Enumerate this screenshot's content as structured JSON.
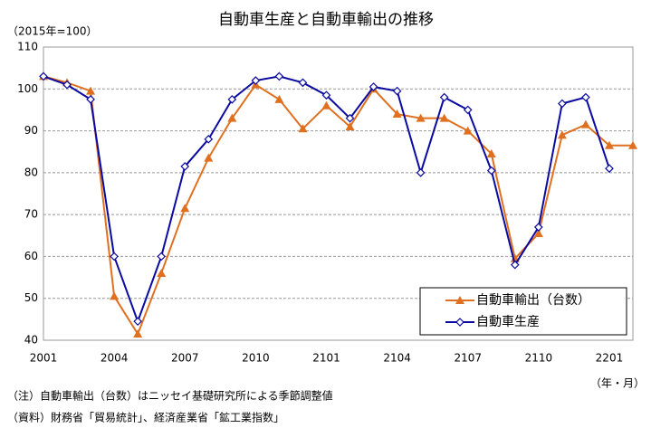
{
  "chart_data": {
    "type": "line",
    "title": "自動車生産と自動車輸出の推移",
    "y_label": "（2015年=100）",
    "x_label": "（年・月）",
    "notes": [
      "（注）自動車輸出（台数）はニッセイ基礎研究所による季節調整値",
      "（資料）財務省「貿易統計」、経済産業省「鉱工業指数」"
    ],
    "categories": [
      "2001",
      null,
      null,
      "2004",
      null,
      null,
      "2007",
      null,
      null,
      "2010",
      null,
      null,
      "2101",
      null,
      null,
      "2104",
      null,
      null,
      "2107",
      null,
      null,
      "2110",
      null,
      null,
      "2201",
      null
    ],
    "series": [
      {
        "name": "自動車輸出（台数）",
        "color": "#e07020",
        "marker": "triangle",
        "values": [
          103,
          101.5,
          99.5,
          50.5,
          41.5,
          56,
          71.5,
          83.5,
          93,
          101,
          97.5,
          90.5,
          96,
          91,
          100,
          94,
          93,
          93,
          90,
          84.5,
          59.5,
          65.5,
          89,
          91.5,
          86.5,
          86.5
        ]
      },
      {
        "name": "自動車生産",
        "color": "#0a0aa0",
        "marker": "diamond",
        "values": [
          103,
          101,
          97.5,
          60,
          44.5,
          60,
          81.5,
          88,
          97.5,
          102,
          103,
          101.5,
          98.5,
          93,
          100.5,
          99.5,
          80,
          98,
          95,
          80.5,
          58,
          67,
          96.5,
          98,
          81,
          null
        ]
      }
    ],
    "ylim": [
      40,
      110
    ],
    "yticks": [
      40,
      50,
      60,
      70,
      80,
      90,
      100,
      110
    ],
    "grid": true,
    "legend": "lower right"
  }
}
